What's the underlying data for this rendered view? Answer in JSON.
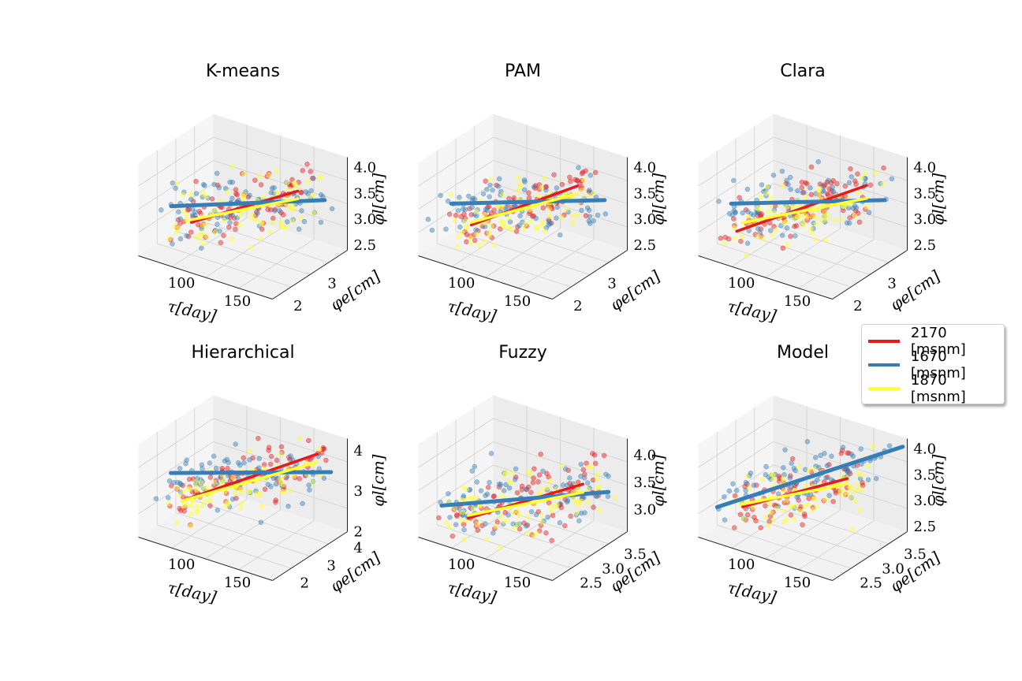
{
  "legend": {
    "items": [
      {
        "label": "2170 [msnm]",
        "color": "#e41a1c"
      },
      {
        "label": "1670 [msnm]",
        "color": "#377eb8"
      },
      {
        "label": "1870 [msnm]",
        "color": "#ffff33"
      }
    ]
  },
  "chart_data": [
    {
      "type": "scatter",
      "title": "K-means",
      "xlabel": "τ[day]",
      "ylabel": "φe[cm]",
      "zlabel": "φl[cm]",
      "xticks": [
        "100",
        "150"
      ],
      "yticks": [
        "2",
        "3"
      ],
      "zticks": [
        "2.5",
        "3.0",
        "3.5",
        "4.0"
      ],
      "xlim": [
        60,
        180
      ],
      "ylim": [
        1.8,
        4.0
      ],
      "zlim": [
        2.4,
        4.2
      ],
      "series": [
        {
          "name": "2170 [msnm]",
          "color": "#e41a1c",
          "fit": [
            [
              80,
              2.7,
              2.8
            ],
            [
              160,
              3.2,
              3.75
            ]
          ],
          "cloud": {
            "x": [
              75,
              165
            ],
            "y": [
              2.0,
              3.8
            ],
            "z": [
              2.5,
              4.0
            ],
            "n": 90
          }
        },
        {
          "name": "1670 [msnm]",
          "color": "#377eb8",
          "fit": [
            [
              65,
              2.6,
              3.05
            ],
            [
              175,
              3.5,
              3.55
            ]
          ],
          "cloud": {
            "x": [
              65,
              175
            ],
            "y": [
              2.0,
              3.8
            ],
            "z": [
              2.7,
              3.9
            ],
            "n": 90
          }
        },
        {
          "name": "1870 [msnm]",
          "color": "#ffff33",
          "fit": [
            [
              80,
              2.7,
              2.85
            ],
            [
              160,
              3.2,
              3.6
            ]
          ],
          "cloud": {
            "x": [
              75,
              165
            ],
            "y": [
              2.0,
              3.8
            ],
            "z": [
              2.5,
              3.9
            ],
            "n": 90
          }
        }
      ]
    },
    {
      "type": "scatter",
      "title": "PAM",
      "xlabel": "τ[day]",
      "ylabel": "φe[cm]",
      "zlabel": "φl[cm]",
      "xticks": [
        "100",
        "150"
      ],
      "yticks": [
        "2",
        "3"
      ],
      "zticks": [
        "2.5",
        "3.0",
        "3.5",
        "4.0"
      ],
      "xlim": [
        60,
        180
      ],
      "ylim": [
        1.8,
        4.0
      ],
      "zlim": [
        2.4,
        4.2
      ],
      "series": [
        {
          "name": "2170 [msnm]",
          "color": "#e41a1c",
          "fit": [
            [
              80,
              2.7,
              2.75
            ],
            [
              160,
              3.2,
              3.85
            ]
          ],
          "cloud": {
            "x": [
              75,
              165
            ],
            "y": [
              2.0,
              3.8
            ],
            "z": [
              2.5,
              4.0
            ],
            "n": 90
          }
        },
        {
          "name": "1670 [msnm]",
          "color": "#377eb8",
          "fit": [
            [
              65,
              2.6,
              3.1
            ],
            [
              175,
              3.5,
              3.55
            ]
          ],
          "cloud": {
            "x": [
              65,
              175
            ],
            "y": [
              2.0,
              3.8
            ],
            "z": [
              2.7,
              3.9
            ],
            "n": 90
          }
        },
        {
          "name": "1870 [msnm]",
          "color": "#ffff33",
          "fit": [
            [
              80,
              2.7,
              2.8
            ],
            [
              160,
              3.2,
              3.7
            ]
          ],
          "cloud": {
            "x": [
              75,
              165
            ],
            "y": [
              2.0,
              3.8
            ],
            "z": [
              2.5,
              3.9
            ],
            "n": 90
          }
        }
      ]
    },
    {
      "type": "scatter",
      "title": "Clara",
      "xlabel": "τ[day]",
      "ylabel": "φe[cm]",
      "zlabel": "φl[cm]",
      "xticks": [
        "100",
        "150"
      ],
      "yticks": [
        "2",
        "3"
      ],
      "zticks": [
        "2.5",
        "3.0",
        "3.5",
        "4.0"
      ],
      "xlim": [
        60,
        180
      ],
      "ylim": [
        1.8,
        4.0
      ],
      "zlim": [
        2.4,
        4.2
      ],
      "series": [
        {
          "name": "2170 [msnm]",
          "color": "#e41a1c",
          "fit": [
            [
              70,
              2.6,
              2.6
            ],
            [
              165,
              3.3,
              3.85
            ]
          ],
          "cloud": {
            "x": [
              70,
              165
            ],
            "y": [
              2.0,
              3.8
            ],
            "z": [
              2.5,
              4.0
            ],
            "n": 90
          }
        },
        {
          "name": "1670 [msnm]",
          "color": "#377eb8",
          "fit": [
            [
              65,
              2.6,
              3.1
            ],
            [
              175,
              3.5,
              3.55
            ]
          ],
          "cloud": {
            "x": [
              65,
              175
            ],
            "y": [
              2.0,
              3.8
            ],
            "z": [
              2.7,
              3.9
            ],
            "n": 90
          }
        },
        {
          "name": "1870 [msnm]",
          "color": "#ffff33",
          "fit": [
            [
              75,
              2.6,
              2.8
            ],
            [
              165,
              3.3,
              3.6
            ]
          ],
          "cloud": {
            "x": [
              75,
              165
            ],
            "y": [
              2.0,
              3.8
            ],
            "z": [
              2.5,
              3.9
            ],
            "n": 90
          }
        }
      ]
    },
    {
      "type": "scatter",
      "title": "Hierarchical",
      "xlabel": "τ[day]",
      "ylabel": "φe[cm]",
      "zlabel": "φl[cm]",
      "xticks": [
        "100",
        "150"
      ],
      "yticks": [
        "2",
        "3",
        "4"
      ],
      "zticks": [
        "2",
        "3",
        "4"
      ],
      "xlim": [
        60,
        180
      ],
      "ylim": [
        1.5,
        4.3
      ],
      "zlim": [
        2.0,
        4.3
      ],
      "series": [
        {
          "name": "2170 [msnm]",
          "color": "#e41a1c",
          "fit": [
            [
              75,
              2.5,
              2.6
            ],
            [
              165,
              3.8,
              4.0
            ]
          ],
          "cloud": {
            "x": [
              70,
              170
            ],
            "y": [
              1.8,
              4.1
            ],
            "z": [
              2.2,
              4.2
            ],
            "n": 90
          }
        },
        {
          "name": "1670 [msnm]",
          "color": "#377eb8",
          "fit": [
            [
              65,
              2.5,
              3.2
            ],
            [
              175,
              3.9,
              3.6
            ]
          ],
          "cloud": {
            "x": [
              65,
              175
            ],
            "y": [
              1.8,
              4.1
            ],
            "z": [
              2.6,
              4.0
            ],
            "n": 90
          }
        },
        {
          "name": "1870 [msnm]",
          "color": "#ffff33",
          "fit": [
            [
              75,
              2.5,
              2.6
            ],
            [
              165,
              3.8,
              3.8
            ]
          ],
          "cloud": {
            "x": [
              70,
              170
            ],
            "y": [
              1.8,
              4.1
            ],
            "z": [
              2.0,
              4.1
            ],
            "n": 90
          }
        }
      ]
    },
    {
      "type": "scatter",
      "title": "Fuzzy",
      "xlabel": "τ[day]",
      "ylabel": "φe[cm]",
      "zlabel": "φl[cm]",
      "xticks": [
        "100",
        "150"
      ],
      "yticks": [
        "2.5",
        "3.0",
        "3.5"
      ],
      "zticks": [
        "3.0",
        "3.5",
        "4.0"
      ],
      "xlim": [
        60,
        180
      ],
      "ylim": [
        2.2,
        3.9
      ],
      "zlim": [
        2.6,
        4.3
      ],
      "series": [
        {
          "name": "2170 [msnm]",
          "color": "#e41a1c",
          "fit": [
            [
              85,
              2.7,
              2.85
            ],
            [
              160,
              3.4,
              3.6
            ]
          ],
          "cloud": {
            "x": [
              75,
              170
            ],
            "y": [
              2.3,
              3.8
            ],
            "z": [
              2.7,
              4.1
            ],
            "n": 90
          }
        },
        {
          "name": "1670 [msnm]",
          "color": "#377eb8",
          "fit": [
            [
              65,
              2.6,
              3.0
            ],
            [
              175,
              3.6,
              3.45
            ]
          ],
          "cloud": {
            "x": [
              65,
              175
            ],
            "y": [
              2.3,
              3.8
            ],
            "z": [
              2.8,
              4.0
            ],
            "n": 90
          }
        },
        {
          "name": "1870 [msnm]",
          "color": "#ffff33",
          "fit": [
            [
              85,
              2.7,
              2.9
            ],
            [
              160,
              3.4,
              3.45
            ]
          ],
          "cloud": {
            "x": [
              75,
              170
            ],
            "y": [
              2.3,
              3.8
            ],
            "z": [
              2.6,
              4.0
            ],
            "n": 90
          }
        }
      ]
    },
    {
      "type": "scatter",
      "title": "Model",
      "xlabel": "τ[day]",
      "ylabel": "φe[cm]",
      "zlabel": "φl[cm]",
      "xticks": [
        "100",
        "150"
      ],
      "yticks": [
        "2.5",
        "3.0",
        "3.5"
      ],
      "zticks": [
        "2.5",
        "3.0",
        "3.5",
        "4.0"
      ],
      "xlim": [
        60,
        180
      ],
      "ylim": [
        2.2,
        3.9
      ],
      "zlim": [
        2.4,
        4.2
      ],
      "series": [
        {
          "name": "2170 [msnm]",
          "color": "#e41a1c",
          "fit": [
            [
              80,
              2.7,
              2.85
            ],
            [
              150,
              3.3,
              3.55
            ]
          ],
          "cloud": {
            "x": [
              80,
              160
            ],
            "y": [
              2.4,
              3.7
            ],
            "z": [
              2.6,
              4.0
            ],
            "n": 80
          }
        },
        {
          "name": "1670 [msnm]",
          "color": "#377eb8",
          "fit": [
            [
              65,
              2.5,
              2.85
            ],
            [
              180,
              3.8,
              4.1
            ]
          ],
          "cloud": {
            "x": [
              65,
              170
            ],
            "y": [
              2.4,
              3.7
            ],
            "z": [
              2.6,
              4.0
            ],
            "n": 80
          }
        },
        {
          "name": "1870 [msnm]",
          "color": "#ffff33",
          "fit": [
            [
              80,
              2.7,
              2.9
            ],
            [
              150,
              3.3,
              3.45
            ]
          ],
          "cloud": {
            "x": [
              80,
              160
            ],
            "y": [
              2.4,
              3.7
            ],
            "z": [
              2.6,
              3.9
            ],
            "n": 80
          }
        }
      ]
    }
  ]
}
